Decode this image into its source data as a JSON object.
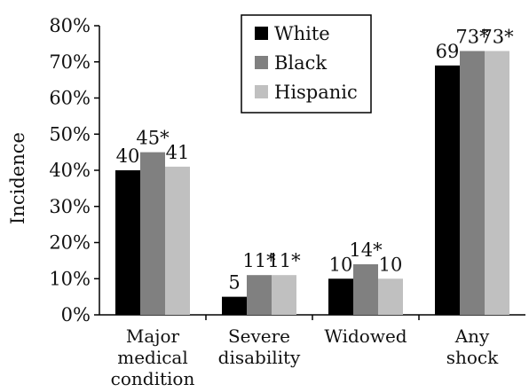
{
  "chart_data": {
    "type": "bar",
    "ylabel": "Incidence",
    "xlabel": "",
    "ylim": [
      0,
      80
    ],
    "y_ticks": [
      {
        "value": 0,
        "label": "0%"
      },
      {
        "value": 10,
        "label": "10%"
      },
      {
        "value": 20,
        "label": "20%"
      },
      {
        "value": 30,
        "label": "30%"
      },
      {
        "value": 40,
        "label": "40%"
      },
      {
        "value": 50,
        "label": "50%"
      },
      {
        "value": 60,
        "label": "60%"
      },
      {
        "value": 70,
        "label": "70%"
      },
      {
        "value": 80,
        "label": "80%"
      }
    ],
    "categories": [
      [
        "Major",
        "medical",
        "condition"
      ],
      [
        "Severe",
        "disability"
      ],
      [
        "Widowed"
      ],
      [
        "Any",
        "shock"
      ]
    ],
    "series": [
      {
        "name": "White",
        "color": "#000000",
        "values": [
          40,
          5,
          10,
          69
        ],
        "labels": [
          "40",
          "5",
          "10",
          "69"
        ]
      },
      {
        "name": "Black",
        "color": "#808080",
        "values": [
          45,
          11,
          14,
          73
        ],
        "labels": [
          "45*",
          "11*",
          "14*",
          "73*"
        ]
      },
      {
        "name": "Hispanic",
        "color": "#c0c0c0",
        "values": [
          41,
          11,
          10,
          73
        ],
        "labels": [
          "41",
          "11*",
          "10",
          "73*"
        ]
      }
    ],
    "legend_position": "top-center",
    "grid": false
  }
}
